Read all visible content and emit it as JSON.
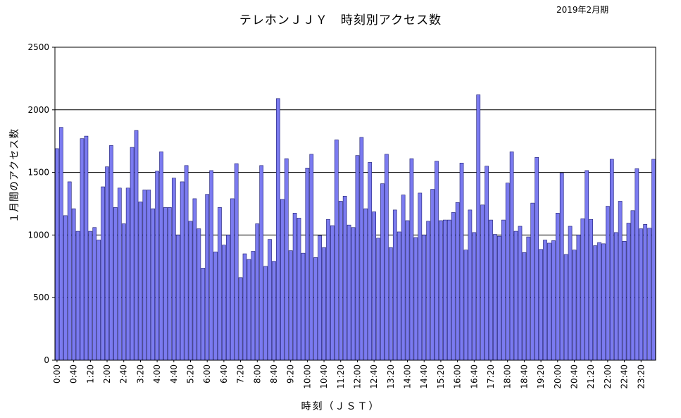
{
  "chart_data": {
    "type": "bar",
    "title": "テレホンＪＪＹ　時刻別アクセス数",
    "subtitle": "2019年2月期",
    "xlabel": "時刻（ＪＳＴ）",
    "ylabel": "１月間のアクセス数",
    "ylim": [
      0,
      2500
    ],
    "yticks": [
      0,
      500,
      1000,
      1500,
      2000,
      2500
    ],
    "grid": true,
    "bar_color": "#7b7bf0",
    "categories": [
      "0:00",
      "0:10",
      "0:20",
      "0:30",
      "0:40",
      "0:50",
      "1:00",
      "1:10",
      "1:20",
      "1:30",
      "1:40",
      "1:50",
      "2:00",
      "2:10",
      "2:20",
      "2:30",
      "2:40",
      "2:50",
      "3:00",
      "3:10",
      "3:20",
      "3:30",
      "3:40",
      "3:50",
      "4:00",
      "4:10",
      "4:20",
      "4:30",
      "4:40",
      "4:50",
      "5:00",
      "5:10",
      "5:20",
      "5:30",
      "5:40",
      "5:50",
      "6:00",
      "6:10",
      "6:20",
      "6:30",
      "6:40",
      "6:50",
      "7:00",
      "7:10",
      "7:20",
      "7:30",
      "7:40",
      "7:50",
      "8:00",
      "8:10",
      "8:20",
      "8:30",
      "8:40",
      "8:50",
      "9:00",
      "9:10",
      "9:20",
      "9:30",
      "9:40",
      "9:50",
      "10:00",
      "10:10",
      "10:20",
      "10:30",
      "10:40",
      "10:50",
      "11:00",
      "11:10",
      "11:20",
      "11:30",
      "11:40",
      "11:50",
      "12:00",
      "12:10",
      "12:20",
      "12:30",
      "12:40",
      "12:50",
      "13:00",
      "13:10",
      "13:20",
      "13:30",
      "13:40",
      "13:50",
      "14:00",
      "14:10",
      "14:20",
      "14:30",
      "14:40",
      "14:50",
      "15:00",
      "15:10",
      "15:20",
      "15:30",
      "15:40",
      "15:50",
      "16:00",
      "16:10",
      "16:20",
      "16:30",
      "16:40",
      "16:50",
      "17:00",
      "17:10",
      "17:20",
      "17:30",
      "17:40",
      "17:50",
      "18:00",
      "18:10",
      "18:20",
      "18:30",
      "18:40",
      "18:50",
      "19:00",
      "19:10",
      "19:20",
      "19:30",
      "19:40",
      "19:50",
      "20:00",
      "20:10",
      "20:20",
      "20:30",
      "20:40",
      "20:50",
      "21:00",
      "21:10",
      "21:20",
      "21:30",
      "21:40",
      "21:50",
      "22:00",
      "22:10",
      "22:20",
      "22:30",
      "22:40",
      "22:50",
      "23:00",
      "23:10",
      "23:20",
      "23:30",
      "23:40",
      "23:50"
    ],
    "tick_labels": [
      "0:00",
      "0:40",
      "1:20",
      "2:00",
      "2:40",
      "3:20",
      "4:00",
      "4:40",
      "5:20",
      "6:00",
      "6:40",
      "7:20",
      "8:00",
      "8:40",
      "9:20",
      "10:00",
      "10:40",
      "11:20",
      "12:00",
      "12:40",
      "13:20",
      "14:00",
      "14:40",
      "15:20",
      "16:00",
      "16:40",
      "17:20",
      "18:00",
      "18:40",
      "19:20",
      "20:00",
      "20:40",
      "21:20",
      "22:00",
      "22:40",
      "23:20"
    ],
    "values": [
      1690,
      1860,
      1155,
      1425,
      1210,
      1030,
      1770,
      1790,
      1030,
      1060,
      960,
      1385,
      1545,
      1715,
      1220,
      1375,
      1090,
      1375,
      1700,
      1835,
      1265,
      1360,
      1360,
      1210,
      1510,
      1665,
      1220,
      1220,
      1455,
      1000,
      1425,
      1555,
      1110,
      1290,
      1050,
      735,
      1325,
      1515,
      865,
      1220,
      920,
      1000,
      1290,
      1570,
      660,
      850,
      805,
      870,
      1090,
      1555,
      750,
      965,
      790,
      2090,
      1285,
      1610,
      875,
      1175,
      1135,
      855,
      1535,
      1645,
      820,
      995,
      900,
      1125,
      1075,
      1760,
      1270,
      1310,
      1080,
      1060,
      1635,
      1780,
      1210,
      1580,
      1185,
      975,
      1410,
      1645,
      900,
      1200,
      1025,
      1320,
      1115,
      1610,
      980,
      1335,
      1000,
      1110,
      1365,
      1590,
      1115,
      1120,
      1120,
      1180,
      1260,
      1575,
      880,
      1200,
      1020,
      2120,
      1240,
      1550,
      1120,
      1005,
      990,
      1120,
      1415,
      1665,
      1030,
      1070,
      860,
      985,
      1255,
      1620,
      885,
      960,
      935,
      955,
      1175,
      1495,
      845,
      1070,
      880,
      1000,
      1130,
      1515,
      1125,
      915,
      940,
      930,
      1230,
      1605,
      1020,
      1270,
      950,
      1095,
      1195,
      1530,
      1050,
      1085,
      1055,
      1605
    ]
  }
}
